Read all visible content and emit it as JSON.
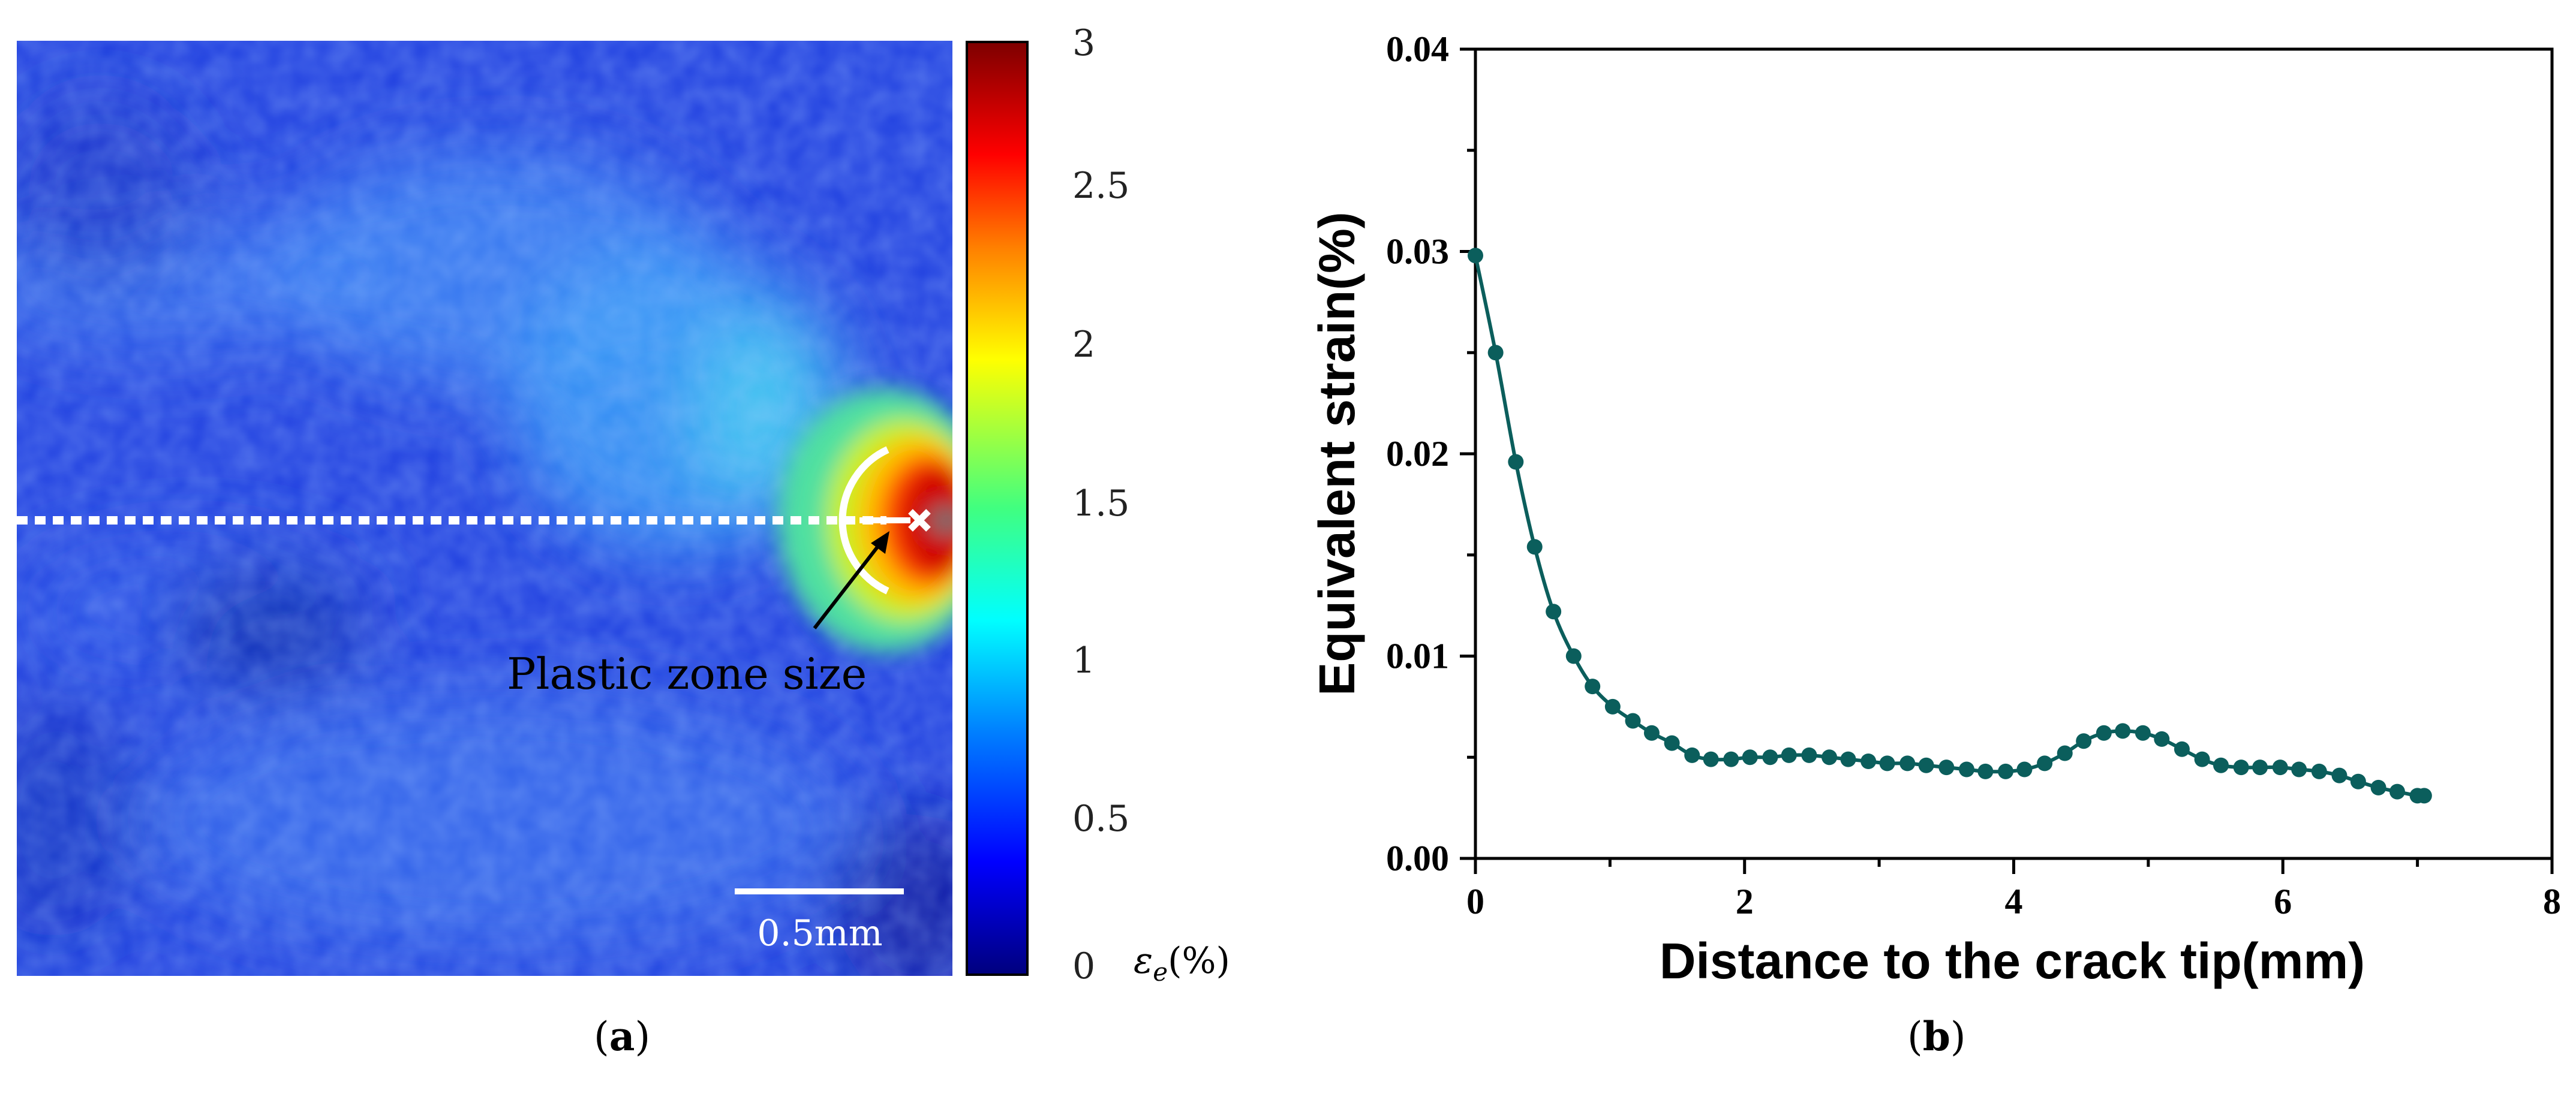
{
  "panel_a": {
    "caption": "a",
    "annotation": "Plastic zone size",
    "scale_bar_label": "0.5mm",
    "colorbar": {
      "ticks": [
        "3",
        "2.5",
        "2",
        "1.5",
        "1",
        "0.5",
        "0"
      ],
      "label": "εe(%)"
    }
  },
  "panel_b": {
    "caption": "b"
  },
  "chart_data": [
    {
      "type": "heatmap",
      "title": "",
      "colorbar_label": "εe(%)",
      "colorbar_range": [
        0,
        3
      ],
      "colorbar_ticks": [
        0,
        0.5,
        1,
        1.5,
        2,
        2.5,
        3
      ],
      "annotations": [
        "Plastic zone size",
        "0.5mm"
      ]
    },
    {
      "type": "line",
      "title": "",
      "xlabel": "Distance to the crack tip(mm)",
      "ylabel": "Equivalent strain(%)",
      "xlim": [
        0,
        8
      ],
      "ylim": [
        0,
        0.04
      ],
      "xticks": [
        "0",
        "2",
        "4",
        "6",
        "8"
      ],
      "yticks": [
        "0.00",
        "0.01",
        "0.02",
        "0.03",
        "0.04"
      ],
      "series": [
        {
          "name": "Equivalent strain",
          "color": "#0b5e5c",
          "x": [
            0.0,
            0.15,
            0.3,
            0.44,
            0.58,
            0.73,
            0.87,
            1.02,
            1.17,
            1.31,
            1.46,
            1.61,
            1.75,
            1.9,
            2.04,
            2.19,
            2.33,
            2.48,
            2.63,
            2.77,
            2.92,
            3.06,
            3.21,
            3.35,
            3.5,
            3.65,
            3.79,
            3.94,
            4.08,
            4.23,
            4.38,
            4.52,
            4.67,
            4.81,
            4.96,
            5.1,
            5.25,
            5.4,
            5.54,
            5.69,
            5.83,
            5.98,
            6.12,
            6.27,
            6.42,
            6.56,
            6.71,
            6.85,
            7.0,
            7.05
          ],
          "values": [
            0.0298,
            0.025,
            0.0196,
            0.0154,
            0.0122,
            0.01,
            0.0085,
            0.0075,
            0.0068,
            0.0062,
            0.0057,
            0.0051,
            0.0049,
            0.0049,
            0.005,
            0.005,
            0.0051,
            0.0051,
            0.005,
            0.0049,
            0.0048,
            0.0047,
            0.0047,
            0.0046,
            0.0045,
            0.0044,
            0.0043,
            0.0043,
            0.0044,
            0.0047,
            0.0052,
            0.0058,
            0.0062,
            0.0063,
            0.0062,
            0.0059,
            0.0054,
            0.0049,
            0.0046,
            0.0045,
            0.0045,
            0.0045,
            0.0044,
            0.0043,
            0.0041,
            0.0038,
            0.0035,
            0.0033,
            0.0031,
            0.0031
          ]
        }
      ]
    }
  ]
}
